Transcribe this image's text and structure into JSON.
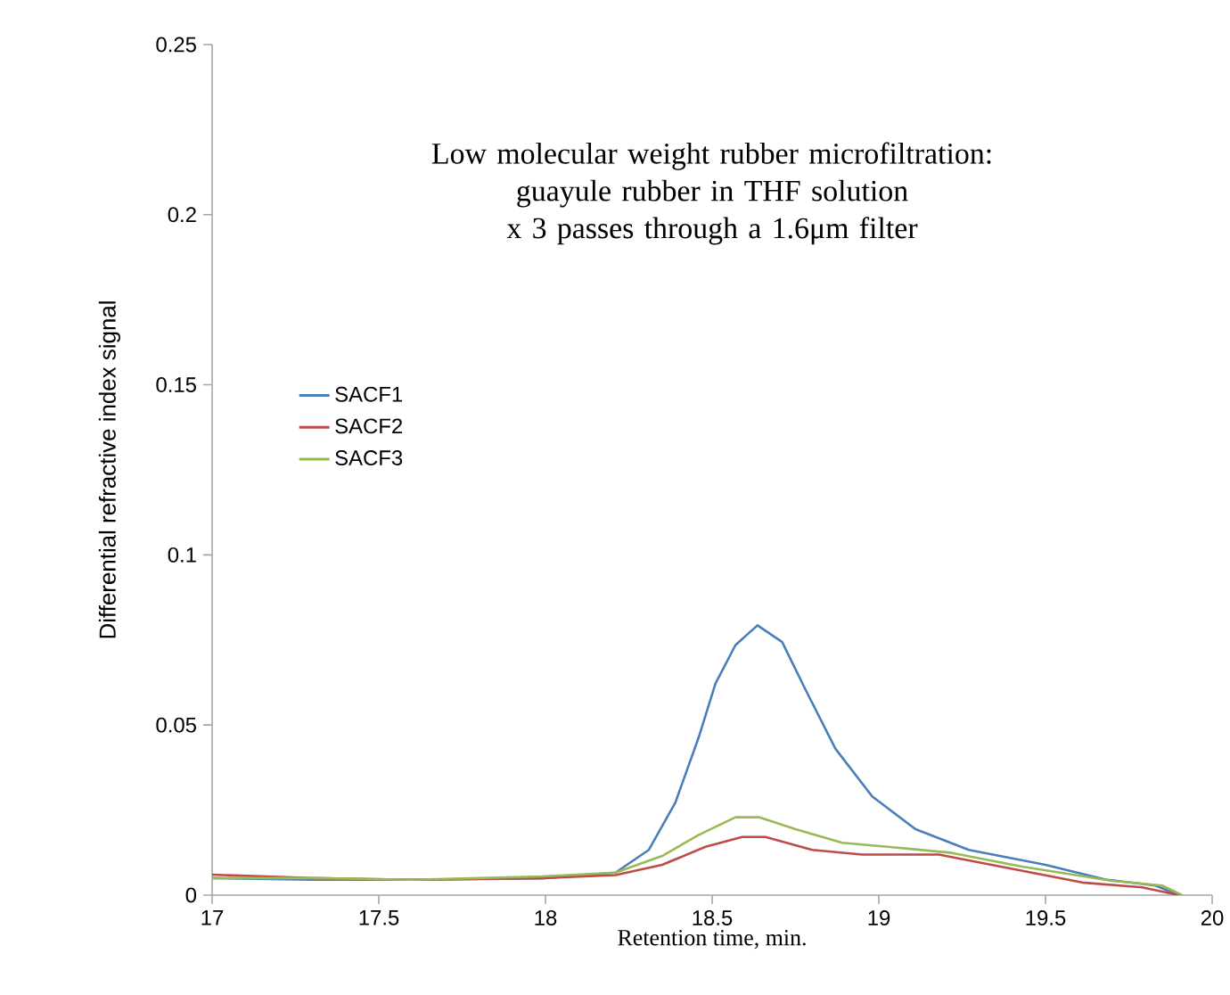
{
  "chart_data": {
    "type": "line",
    "title": "Low molecular weight rubber microfiltration: guayule rubber in THF solution x 3 passes through a 1.6μm filter",
    "xlabel": "Retention time, min.",
    "ylabel": "Differential refractive index signal",
    "xlim": [
      17,
      20
    ],
    "xticks": [
      17,
      17.5,
      18,
      18.5,
      19,
      19.5,
      20
    ],
    "ylim": [
      0,
      0.25
    ],
    "yticks": [
      0,
      0.05,
      0.1,
      0.15,
      0.2,
      0.25
    ],
    "grid": false,
    "legend": "left",
    "marker": "none",
    "line_style": "solid",
    "series": [
      {
        "name": "SACF1",
        "color": "#4a7ebb",
        "x": [
          17,
          17.3,
          17.6,
          17.99,
          18.21,
          18.31,
          18.39,
          18.46,
          18.51,
          18.57,
          18.636,
          18.71,
          18.78,
          18.87,
          18.98,
          19.11,
          19.27,
          19.5,
          19.68,
          19.83,
          19.9
        ],
        "values": [
          0.005,
          0.0045,
          0.0045,
          0.0049,
          0.0066,
          0.0133,
          0.0273,
          0.0465,
          0.0622,
          0.0735,
          0.0793,
          0.0744,
          0.0604,
          0.043,
          0.029,
          0.0194,
          0.0133,
          0.0089,
          0.0046,
          0.0028,
          0.0
        ]
      },
      {
        "name": "SACF2",
        "color": "#be4b48",
        "x": [
          17,
          17.3,
          17.6,
          17.99,
          18.21,
          18.35,
          18.48,
          18.59,
          18.66,
          18.8,
          18.95,
          19.18,
          19.4,
          19.61,
          19.79,
          19.9
        ],
        "values": [
          0.006,
          0.005,
          0.0045,
          0.005,
          0.0059,
          0.0089,
          0.0142,
          0.0171,
          0.0171,
          0.0133,
          0.0119,
          0.0119,
          0.0077,
          0.0037,
          0.0023,
          0.0
        ]
      },
      {
        "name": "SACF3",
        "color": "#98b954",
        "x": [
          17,
          17.3,
          17.6,
          17.99,
          18.21,
          18.35,
          18.46,
          18.57,
          18.64,
          18.75,
          18.89,
          19.07,
          19.22,
          19.43,
          19.7,
          19.85,
          19.91
        ],
        "values": [
          0.005,
          0.005,
          0.0045,
          0.0055,
          0.0066,
          0.0115,
          0.0177,
          0.0229,
          0.0229,
          0.0194,
          0.0154,
          0.0138,
          0.0124,
          0.0084,
          0.0042,
          0.0028,
          0.0
        ]
      }
    ]
  }
}
